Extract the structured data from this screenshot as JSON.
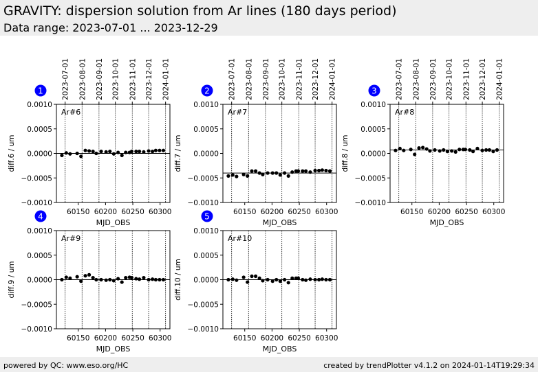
{
  "header": {
    "title": "GRAVITY: dispersion solution from Ar lines (180 days period)",
    "subtitle": "Data range: 2023-07-01 ... 2023-12-29"
  },
  "footer": {
    "left": "powered by QC: www.eso.org/HC",
    "right": "created by trendPlotter v4.1.2 on 2024-01-14T19:29:34"
  },
  "colors": {
    "marker": "#000000",
    "badge": "#0000ff",
    "header_bg": "#eeeeee"
  },
  "axes_common": {
    "xlim": [
      60110,
      60318
    ],
    "ylim": [
      -0.001,
      0.001
    ],
    "xticks": [
      60150,
      60200,
      60250,
      60300
    ],
    "xtick_labels": [
      "60150",
      "60200",
      "60250",
      "60300"
    ],
    "yticks": [
      -0.001,
      -0.0005,
      0.0,
      0.0005,
      0.001
    ],
    "ytick_labels": [
      "−0.0010",
      "−0.0005",
      "0.0000",
      "0.0005",
      "0.0010"
    ],
    "xlabel": "MJD_OBS",
    "top_date_ticks": [
      60126,
      60157,
      60188,
      60218,
      60249,
      60279,
      60310
    ],
    "top_date_labels": [
      "2023-07-01",
      "2023-08-01",
      "2023-09-01",
      "2023-10-01",
      "2023-11-01",
      "2023-12-01",
      "2024-01-01"
    ]
  },
  "chart_data": [
    {
      "type": "scatter",
      "badge": "1",
      "label": "Ar#6",
      "ylabel": "diff.6 / um",
      "reference": 0.0,
      "x": [
        60120,
        60128,
        60135,
        60148,
        60155,
        60163,
        60170,
        60177,
        60183,
        60192,
        60201,
        60208,
        60215,
        60223,
        60230,
        60237,
        60244,
        60248,
        60256,
        60262,
        60270,
        60279,
        60286,
        60292,
        60299,
        60306
      ],
      "y": [
        -4e-05,
        1e-05,
        -1e-05,
        0.0,
        -6e-05,
        6e-05,
        5e-05,
        4e-05,
        0.0,
        4e-05,
        3e-05,
        4e-05,
        -1e-05,
        2e-05,
        -4e-05,
        2e-05,
        2e-05,
        4e-05,
        4e-05,
        4e-05,
        3e-05,
        5e-05,
        4e-05,
        6e-05,
        6e-05,
        6e-05
      ]
    },
    {
      "type": "scatter",
      "badge": "2",
      "label": "Ar#7",
      "ylabel": "diff.7 / um",
      "reference": -0.0004,
      "x": [
        60120,
        60128,
        60135,
        60148,
        60155,
        60163,
        60170,
        60177,
        60183,
        60192,
        60201,
        60208,
        60215,
        60223,
        60230,
        60237,
        60244,
        60248,
        60256,
        60262,
        60270,
        60279,
        60286,
        60292,
        60299,
        60306
      ],
      "y": [
        -0.00046,
        -0.00044,
        -0.00047,
        -0.00043,
        -0.00046,
        -0.00036,
        -0.00036,
        -0.0004,
        -0.00043,
        -0.0004,
        -0.0004,
        -0.0004,
        -0.00044,
        -0.0004,
        -0.00046,
        -0.00038,
        -0.00036,
        -0.00036,
        -0.00036,
        -0.00036,
        -0.00038,
        -0.00035,
        -0.00035,
        -0.00034,
        -0.00035,
        -0.00036
      ]
    },
    {
      "type": "scatter",
      "badge": "3",
      "label": "Ar#8",
      "ylabel": "diff.8 / um",
      "reference": 7e-05,
      "x": [
        60120,
        60128,
        60135,
        60148,
        60155,
        60163,
        60170,
        60177,
        60183,
        60192,
        60201,
        60208,
        60215,
        60223,
        60230,
        60237,
        60244,
        60248,
        60256,
        60262,
        60270,
        60279,
        60286,
        60292,
        60299,
        60306
      ],
      "y": [
        6e-05,
        0.0001,
        6e-05,
        8e-05,
        -2e-05,
        0.00011,
        0.00012,
        9e-05,
        5e-05,
        7e-05,
        5e-05,
        7e-05,
        4e-05,
        5e-05,
        3e-05,
        8e-05,
        8e-05,
        8e-05,
        7e-05,
        4e-05,
        0.0001,
        6e-05,
        7e-05,
        7e-05,
        4e-05,
        7e-05
      ]
    },
    {
      "type": "scatter",
      "badge": "4",
      "label": "Ar#9",
      "ylabel": "diff.9 / um",
      "reference": 0.0,
      "x": [
        60120,
        60128,
        60135,
        60148,
        60155,
        60163,
        60170,
        60177,
        60183,
        60192,
        60201,
        60208,
        60215,
        60223,
        60230,
        60237,
        60244,
        60248,
        60256,
        60262,
        60270,
        60279,
        60286,
        60292,
        60299,
        60306
      ],
      "y": [
        0.0,
        5e-05,
        3e-05,
        6e-05,
        -3e-05,
        8e-05,
        0.0001,
        4e-05,
        0.0,
        0.0,
        -1e-05,
        0.0,
        -2e-05,
        2e-05,
        -5e-05,
        4e-05,
        5e-05,
        4e-05,
        2e-05,
        1e-05,
        4e-05,
        0.0,
        1e-05,
        0.0,
        0.0,
        0.0
      ]
    },
    {
      "type": "scatter",
      "badge": "5",
      "label": "Ar#10",
      "ylabel": "diff.10 / um",
      "reference": 0.0,
      "x": [
        60120,
        60128,
        60135,
        60148,
        60155,
        60163,
        60170,
        60177,
        60183,
        60192,
        60201,
        60208,
        60215,
        60223,
        60230,
        60237,
        60244,
        60248,
        60256,
        60262,
        60270,
        60279,
        60286,
        60292,
        60299,
        60306
      ],
      "y": [
        0.0,
        1e-05,
        -1e-05,
        5e-05,
        -5e-05,
        7e-05,
        7e-05,
        3e-05,
        -2e-05,
        0.0,
        -3e-05,
        0.0,
        -3e-05,
        0.0,
        -6e-05,
        3e-05,
        3e-05,
        3e-05,
        0.0,
        -1e-05,
        1e-05,
        0.0,
        0.0,
        1e-05,
        0.0,
        0.0
      ]
    }
  ]
}
